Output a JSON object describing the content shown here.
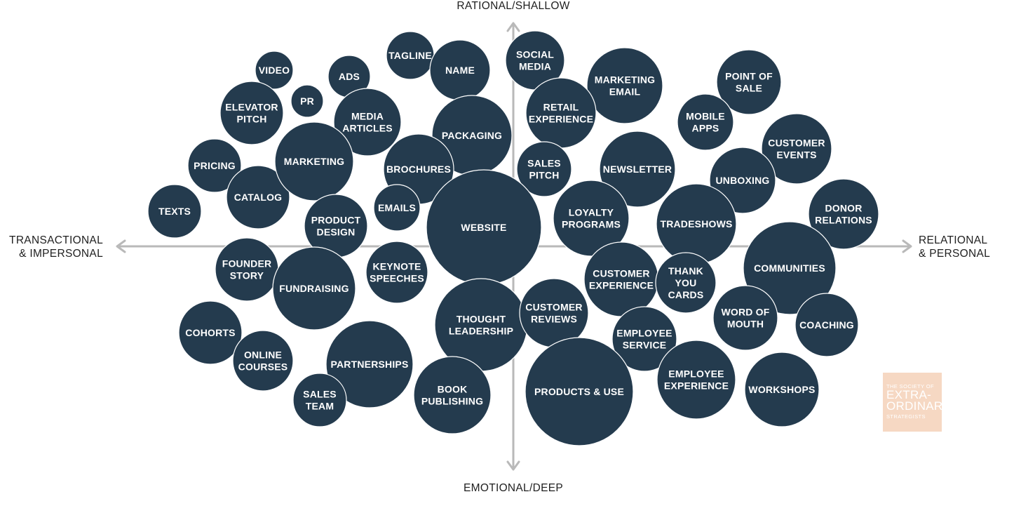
{
  "axes": {
    "top": "RATIONAL/SHALLOW",
    "bottom": "EMOTIONAL/DEEP",
    "left": [
      "TRANSACTIONAL",
      "& IMPERSONAL"
    ],
    "right": [
      "RELATIONAL",
      "& PERSONAL"
    ]
  },
  "bubbles": [
    {
      "id": "video",
      "lines": [
        "VIDEO"
      ]
    },
    {
      "id": "pr",
      "lines": [
        "PR"
      ]
    },
    {
      "id": "ads",
      "lines": [
        "ADS"
      ]
    },
    {
      "id": "tagline",
      "lines": [
        "TAGLINE"
      ]
    },
    {
      "id": "name",
      "lines": [
        "NAME"
      ]
    },
    {
      "id": "elevator-pitch",
      "lines": [
        "ELEVATOR",
        "PITCH"
      ]
    },
    {
      "id": "media-articles",
      "lines": [
        "MEDIA",
        "ARTICLES"
      ]
    },
    {
      "id": "pricing",
      "lines": [
        "PRICING"
      ]
    },
    {
      "id": "catalog",
      "lines": [
        "CATALOG"
      ]
    },
    {
      "id": "marketing",
      "lines": [
        "MARKETING"
      ]
    },
    {
      "id": "texts",
      "lines": [
        "TEXTS"
      ]
    },
    {
      "id": "packaging",
      "lines": [
        "PACKAGING"
      ]
    },
    {
      "id": "brochures",
      "lines": [
        "BROCHURES"
      ]
    },
    {
      "id": "emails",
      "lines": [
        "EMAILS"
      ]
    },
    {
      "id": "product-design",
      "lines": [
        "PRODUCT",
        "DESIGN"
      ]
    },
    {
      "id": "social-media",
      "lines": [
        "SOCIAL",
        "MEDIA"
      ]
    },
    {
      "id": "marketing-email",
      "lines": [
        "MARKETING",
        "EMAIL"
      ]
    },
    {
      "id": "retail-experience",
      "lines": [
        "RETAIL",
        "EXPERIENCE"
      ]
    },
    {
      "id": "point-of-sale",
      "lines": [
        "POINT OF",
        "SALE"
      ]
    },
    {
      "id": "mobile-apps",
      "lines": [
        "MOBILE",
        "APPS"
      ]
    },
    {
      "id": "customer-events",
      "lines": [
        "CUSTOMER",
        "EVENTS"
      ]
    },
    {
      "id": "sales-pitch",
      "lines": [
        "SALES",
        "PITCH"
      ]
    },
    {
      "id": "newsletter",
      "lines": [
        "NEWSLETTER"
      ]
    },
    {
      "id": "unboxing",
      "lines": [
        "UNBOXING"
      ]
    },
    {
      "id": "donor-relations",
      "lines": [
        "DONOR",
        "RELATIONS"
      ]
    },
    {
      "id": "website",
      "lines": [
        "WEBSITE"
      ]
    },
    {
      "id": "loyalty-programs",
      "lines": [
        "LOYALTY",
        "PROGRAMS"
      ]
    },
    {
      "id": "tradeshows",
      "lines": [
        "TRADESHOWS"
      ]
    },
    {
      "id": "founder-story",
      "lines": [
        "FOUNDER",
        "STORY"
      ]
    },
    {
      "id": "fundraising",
      "lines": [
        "FUNDRAISING"
      ]
    },
    {
      "id": "keynote-speeches",
      "lines": [
        "KEYNOTE",
        "SPEECHES"
      ]
    },
    {
      "id": "communities",
      "lines": [
        "COMMUNITIES"
      ]
    },
    {
      "id": "customer-experience",
      "lines": [
        "CUSTOMER",
        "EXPERIENCE"
      ]
    },
    {
      "id": "thank-you-cards",
      "lines": [
        "THANK",
        "YOU",
        "CARDS"
      ]
    },
    {
      "id": "thought-leadership",
      "lines": [
        "THOUGHT",
        "LEADERSHIP"
      ]
    },
    {
      "id": "customer-reviews",
      "lines": [
        "CUSTOMER",
        "REVIEWS"
      ]
    },
    {
      "id": "word-of-mouth",
      "lines": [
        "WORD OF",
        "MOUTH"
      ]
    },
    {
      "id": "coaching",
      "lines": [
        "COACHING"
      ]
    },
    {
      "id": "cohorts",
      "lines": [
        "COHORTS"
      ]
    },
    {
      "id": "employee-service",
      "lines": [
        "EMPLOYEE",
        "SERVICE"
      ]
    },
    {
      "id": "online-courses",
      "lines": [
        "ONLINE",
        "COURSES"
      ]
    },
    {
      "id": "partnerships",
      "lines": [
        "PARTNERSHIPS"
      ]
    },
    {
      "id": "employee-experience",
      "lines": [
        "EMPLOYEE",
        "EXPERIENCE"
      ]
    },
    {
      "id": "workshops",
      "lines": [
        "WORKSHOPS"
      ]
    },
    {
      "id": "sales-team",
      "lines": [
        "SALES",
        "TEAM"
      ]
    },
    {
      "id": "book-publishing",
      "lines": [
        "BOOK",
        "PUBLISHING"
      ]
    },
    {
      "id": "products-use",
      "lines": [
        "PRODUCTS & USE"
      ]
    }
  ],
  "logo": {
    "line1": "THE SOCIETY OF",
    "line2": "EXTRA-ORDINARY",
    "line3": "STRATEGISTS"
  },
  "colors": {
    "bubble": "#243b4e",
    "axis": "#b9b9b9",
    "logo_bg": "#f6d8c3"
  }
}
